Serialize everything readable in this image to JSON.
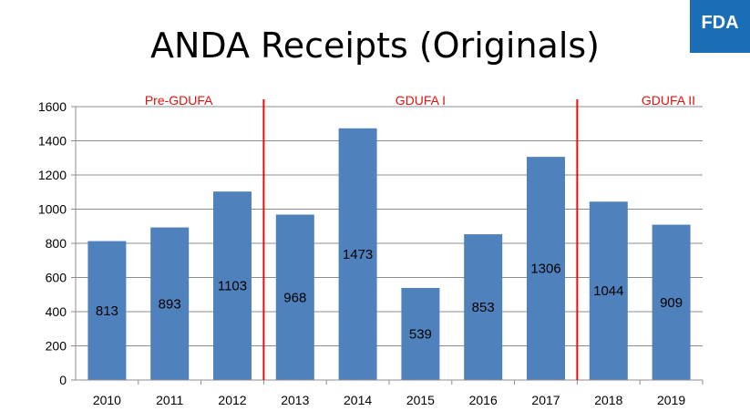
{
  "title": "ANDA Receipts (Originals)",
  "logo": {
    "text": "FDA",
    "color": "#1a6eb5"
  },
  "chart_data": {
    "type": "bar",
    "categories": [
      "2010",
      "2011",
      "2012",
      "2013",
      "2014",
      "2015",
      "2016",
      "2017",
      "2018",
      "2019"
    ],
    "values": [
      813,
      893,
      1103,
      968,
      1473,
      539,
      853,
      1306,
      1044,
      909
    ],
    "data_labels": [
      "813",
      "893",
      "1103",
      "968",
      "1473",
      "539",
      "853",
      "1306",
      "1044",
      "909"
    ],
    "ylim": [
      0,
      1600
    ],
    "yticks": [
      0,
      200,
      400,
      600,
      800,
      1000,
      1200,
      1400,
      1600
    ],
    "grid": true,
    "bar_color": "#4f81bd",
    "annotations": [
      {
        "text": "Pre-GDUFA",
        "after_category": "2012",
        "divider_after": true
      },
      {
        "text": "GDUFA I",
        "after_category": "2017",
        "divider_after": true
      },
      {
        "text": "GDUFA II"
      }
    ],
    "divider_color": "#e3110d"
  }
}
